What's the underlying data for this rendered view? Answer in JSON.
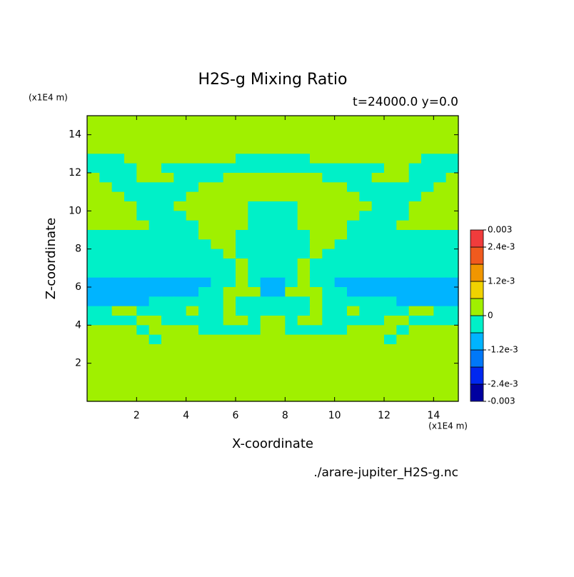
{
  "chart_data": {
    "type": "contour",
    "title": "H2S-g Mixing Ratio",
    "subtitle": "t=24000.0 y=0.0",
    "x_label": "X-coordinate",
    "y_label": "Z-coordinate",
    "x_unit": "(x1E4 m)",
    "y_unit": "(x1E4 m)",
    "source": "./arare-jupiter_H2S-g.nc",
    "xlim": [
      0,
      15
    ],
    "ylim": [
      0,
      15
    ],
    "xticks": [
      2,
      4,
      6,
      8,
      10,
      12,
      14
    ],
    "yticks": [
      2,
      4,
      6,
      8,
      10,
      12,
      14
    ],
    "levels": [
      -0.003,
      -0.0024,
      -0.0018,
      -0.0012,
      -0.0006,
      0,
      0.0006,
      0.0012,
      0.0018,
      0.0024,
      0.003
    ],
    "colors": [
      "#0000a0",
      "#0028f0",
      "#0078f8",
      "#00b4ff",
      "#00f0c8",
      "#a0f000",
      "#f0d200",
      "#f09600",
      "#f05a1e",
      "#f03c3c"
    ],
    "colorbar_ticks": [
      0.003,
      {
        "value": 0.0024,
        "label": "2.4e-3"
      },
      {
        "value": 0.0012,
        "label": "1.2e-3"
      },
      0,
      {
        "value": -0.0012,
        "label": "-1.2e-3"
      },
      {
        "value": -0.0024,
        "label": "-2.4e-3"
      },
      -0.003
    ],
    "z": [
      [
        0.0003,
        0.0003,
        0.0003,
        0.0003,
        0.0003,
        0.0003,
        0.0003,
        0.0003,
        0.0003,
        0.0003,
        0.0003,
        0.0003,
        0.0003,
        0.0003,
        0.0003,
        0.0003,
        0.0003,
        0.0003,
        0.0003,
        0.0003,
        0.0003,
        0.0003,
        0.0003,
        0.0003,
        0.0003,
        0.0003,
        0.0003,
        0.0003,
        0.0003,
        0.0003
      ],
      [
        0.0003,
        0.0003,
        0.0003,
        0.0003,
        0.0003,
        0.0003,
        0.0003,
        0.0003,
        0.0003,
        0.0003,
        0.0003,
        0.0003,
        0.0003,
        0.0003,
        0.0003,
        0.0003,
        0.0003,
        0.0003,
        0.0003,
        0.0003,
        0.0003,
        0.0003,
        0.0003,
        0.0003,
        0.0003,
        0.0003,
        0.0003,
        0.0003,
        0.0003,
        0.0003
      ],
      [
        0.0003,
        0.0003,
        0.0003,
        0.0003,
        0.0003,
        0.0003,
        0.0003,
        0.0003,
        0.0003,
        0.0003,
        0.0003,
        0.0003,
        0.0003,
        0.0003,
        0.0003,
        0.0003,
        0.0003,
        0.0003,
        0.0003,
        0.0003,
        0.0003,
        0.0003,
        0.0003,
        0.0003,
        0.0003,
        0.0003,
        0.0003,
        0.0003,
        0.0003,
        0.0003
      ],
      [
        0.0003,
        0.0003,
        0.0003,
        0.0003,
        0.0003,
        0.0003,
        0.0003,
        0.0003,
        0.0003,
        0.0003,
        0.0003,
        0.0003,
        0.0003,
        0.0003,
        0.0003,
        0.0003,
        0.0003,
        0.0003,
        0.0003,
        0.0003,
        0.0003,
        0.0003,
        0.0003,
        0.0003,
        0.0003,
        0.0003,
        0.0003,
        0.0003,
        0.0003,
        0.0003
      ],
      [
        -0.0003,
        -0.0003,
        -0.0003,
        0.0003,
        0.0003,
        0.0003,
        0.0003,
        0.0003,
        0.0003,
        0.0003,
        0.0003,
        0.0003,
        -0.0003,
        -0.0003,
        -0.0003,
        -0.0003,
        -0.0003,
        -0.0003,
        0.0003,
        0.0003,
        0.0003,
        0.0003,
        0.0003,
        0.0003,
        0.0003,
        0.0003,
        0.0003,
        -0.0003,
        -0.0003,
        -0.0003
      ],
      [
        -0.0003,
        -0.0003,
        -0.0003,
        -0.0003,
        0.0003,
        0.0003,
        -0.0003,
        -0.0003,
        -0.0003,
        -0.0003,
        -0.0003,
        -0.0003,
        -0.0003,
        -0.0003,
        -0.0003,
        -0.0003,
        -0.0003,
        -0.0003,
        -0.0003,
        -0.0003,
        -0.0003,
        -0.0003,
        -0.0003,
        -0.0003,
        0.0003,
        0.0003,
        -0.0003,
        -0.0003,
        -0.0003,
        -0.0003
      ],
      [
        0.0003,
        -0.0003,
        -0.0003,
        -0.0003,
        0.0003,
        0.0003,
        0.0003,
        -0.0003,
        -0.0003,
        -0.0003,
        -0.0003,
        0.0003,
        0.0003,
        0.0003,
        0.0003,
        0.0003,
        0.0003,
        0.0003,
        0.0003,
        -0.0003,
        -0.0003,
        -0.0003,
        -0.0003,
        0.0003,
        0.0003,
        0.0003,
        -0.0003,
        -0.0003,
        -0.0003,
        0.0003
      ],
      [
        0.0003,
        0.0003,
        -0.0003,
        -0.0003,
        -0.0003,
        -0.0003,
        -0.0003,
        -0.0003,
        -0.0003,
        0.0003,
        0.0003,
        0.0003,
        0.0003,
        0.0003,
        0.0003,
        0.0003,
        0.0003,
        0.0003,
        0.0003,
        0.0003,
        0.0003,
        -0.0003,
        -0.0003,
        -0.0003,
        -0.0003,
        -0.0003,
        -0.0003,
        -0.0003,
        0.0003,
        0.0003
      ],
      [
        0.0003,
        0.0003,
        0.0003,
        -0.0003,
        -0.0003,
        -0.0003,
        -0.0003,
        -0.0003,
        0.0003,
        0.0003,
        0.0003,
        0.0003,
        0.0003,
        0.0003,
        0.0003,
        0.0003,
        0.0003,
        0.0003,
        0.0003,
        0.0003,
        0.0003,
        0.0003,
        -0.0003,
        -0.0003,
        -0.0003,
        -0.0003,
        -0.0003,
        0.0003,
        0.0003,
        0.0003
      ],
      [
        0.0003,
        0.0003,
        0.0003,
        0.0003,
        -0.0003,
        -0.0003,
        -0.0003,
        0.0003,
        0.0003,
        0.0003,
        0.0003,
        0.0003,
        0.0003,
        -0.0003,
        -0.0003,
        -0.0003,
        -0.0003,
        0.0003,
        0.0003,
        0.0003,
        0.0003,
        0.0003,
        0.0003,
        -0.0003,
        -0.0003,
        -0.0003,
        0.0003,
        0.0003,
        0.0003,
        0.0003
      ],
      [
        0.0003,
        0.0003,
        0.0003,
        0.0003,
        -0.0003,
        -0.0003,
        -0.0003,
        -0.0003,
        0.0003,
        0.0003,
        0.0003,
        0.0003,
        0.0003,
        -0.0003,
        -0.0003,
        -0.0003,
        -0.0003,
        0.0003,
        0.0003,
        0.0003,
        0.0003,
        0.0003,
        -0.0003,
        -0.0003,
        -0.0003,
        -0.0003,
        0.0003,
        0.0003,
        0.0003,
        0.0003
      ],
      [
        0.0003,
        0.0003,
        0.0003,
        0.0003,
        0.0003,
        -0.0003,
        -0.0003,
        -0.0003,
        -0.0003,
        0.0003,
        0.0003,
        0.0003,
        0.0003,
        -0.0003,
        -0.0003,
        -0.0003,
        -0.0003,
        0.0003,
        0.0003,
        0.0003,
        0.0003,
        -0.0003,
        -0.0003,
        -0.0003,
        -0.0003,
        0.0003,
        0.0003,
        0.0003,
        0.0003,
        0.0003
      ],
      [
        -0.0003,
        -0.0003,
        -0.0003,
        -0.0003,
        -0.0003,
        -0.0003,
        -0.0003,
        -0.0003,
        -0.0003,
        0.0003,
        0.0003,
        0.0003,
        -0.0003,
        -0.0003,
        -0.0003,
        -0.0003,
        -0.0003,
        -0.0003,
        0.0003,
        0.0003,
        0.0003,
        -0.0003,
        -0.0003,
        -0.0003,
        -0.0003,
        -0.0003,
        -0.0003,
        -0.0003,
        -0.0003,
        -0.0003
      ],
      [
        -0.0003,
        -0.0003,
        -0.0003,
        -0.0003,
        -0.0003,
        -0.0003,
        -0.0003,
        -0.0003,
        -0.0003,
        -0.0003,
        0.0003,
        0.0003,
        -0.0003,
        -0.0003,
        -0.0003,
        -0.0003,
        -0.0003,
        -0.0003,
        0.0003,
        0.0003,
        -0.0003,
        -0.0003,
        -0.0003,
        -0.0003,
        -0.0003,
        -0.0003,
        -0.0003,
        -0.0003,
        -0.0003,
        -0.0003
      ],
      [
        -0.0003,
        -0.0003,
        -0.0003,
        -0.0003,
        -0.0003,
        -0.0003,
        -0.0003,
        -0.0003,
        -0.0003,
        -0.0003,
        -0.0003,
        0.0003,
        -0.0003,
        -0.0003,
        -0.0003,
        -0.0003,
        -0.0003,
        -0.0003,
        0.0003,
        -0.0003,
        -0.0003,
        -0.0003,
        -0.0003,
        -0.0003,
        -0.0003,
        -0.0003,
        -0.0003,
        -0.0003,
        -0.0003,
        -0.0003
      ],
      [
        -0.0003,
        -0.0003,
        -0.0003,
        -0.0003,
        -0.0003,
        -0.0003,
        -0.0003,
        -0.0003,
        -0.0003,
        -0.0003,
        -0.0003,
        -0.0003,
        0.0003,
        -0.0003,
        -0.0003,
        -0.0003,
        -0.0003,
        0.0003,
        -0.0003,
        -0.0003,
        -0.0003,
        -0.0003,
        -0.0003,
        -0.0003,
        -0.0003,
        -0.0003,
        -0.0003,
        -0.0003,
        -0.0003,
        -0.0003
      ],
      [
        -0.0003,
        -0.0003,
        -0.0003,
        -0.0003,
        -0.0003,
        -0.0003,
        -0.0003,
        -0.0003,
        -0.0003,
        -0.0003,
        -0.0003,
        -0.0003,
        0.0003,
        -0.0003,
        -0.0003,
        -0.0003,
        -0.0003,
        0.0003,
        -0.0003,
        -0.0003,
        -0.0003,
        -0.0003,
        -0.0003,
        -0.0003,
        -0.0003,
        -0.0003,
        -0.0003,
        -0.0003,
        -0.0003,
        -0.0003
      ],
      [
        -0.0009,
        -0.0009,
        -0.0009,
        -0.0009,
        -0.0009,
        -0.0009,
        -0.0009,
        -0.0009,
        -0.0009,
        -0.0009,
        -0.0003,
        -0.0003,
        0.0003,
        -0.0003,
        -0.0009,
        -0.0009,
        -0.0003,
        0.0003,
        -0.0003,
        -0.0003,
        -0.0009,
        -0.0009,
        -0.0009,
        -0.0009,
        -0.0009,
        -0.0009,
        -0.0009,
        -0.0009,
        -0.0009,
        -0.0009
      ],
      [
        -0.0009,
        -0.0009,
        -0.0009,
        -0.0009,
        -0.0009,
        -0.0009,
        -0.0009,
        -0.0009,
        -0.0009,
        -0.0003,
        -0.0003,
        0.0003,
        0.0003,
        0.0003,
        -0.0009,
        -0.0009,
        0.0003,
        0.0003,
        0.0003,
        -0.0003,
        -0.0003,
        -0.0009,
        -0.0009,
        -0.0009,
        -0.0009,
        -0.0009,
        -0.0009,
        -0.0009,
        -0.0009,
        -0.0009
      ],
      [
        -0.0009,
        -0.0009,
        -0.0009,
        -0.0009,
        -0.0009,
        -0.0003,
        -0.0003,
        -0.0003,
        -0.0003,
        -0.0003,
        -0.0003,
        0.0003,
        -0.0003,
        -0.0003,
        -0.0003,
        -0.0003,
        -0.0003,
        -0.0003,
        0.0003,
        -0.0003,
        -0.0003,
        -0.0003,
        -0.0003,
        -0.0003,
        -0.0003,
        -0.0009,
        -0.0009,
        -0.0009,
        -0.0009,
        -0.0009
      ],
      [
        -0.0003,
        -0.0003,
        0.0003,
        0.0003,
        -0.0003,
        -0.0003,
        -0.0003,
        -0.0003,
        0.0003,
        -0.0003,
        -0.0003,
        0.0003,
        -0.0003,
        -0.0003,
        -0.0003,
        -0.0003,
        -0.0003,
        -0.0003,
        0.0003,
        -0.0003,
        -0.0003,
        0.0003,
        -0.0003,
        -0.0003,
        -0.0003,
        -0.0003,
        0.0003,
        0.0003,
        -0.0003,
        -0.0003
      ],
      [
        -0.0003,
        -0.0003,
        -0.0003,
        -0.0003,
        0.0003,
        0.0003,
        -0.0003,
        -0.0003,
        -0.0003,
        -0.0003,
        -0.0003,
        0.0003,
        0.0003,
        -0.0003,
        0.0003,
        0.0003,
        -0.0003,
        0.0003,
        0.0003,
        -0.0003,
        -0.0003,
        -0.0003,
        -0.0003,
        -0.0003,
        0.0003,
        0.0003,
        -0.0003,
        -0.0003,
        -0.0003,
        -0.0003
      ],
      [
        0.0003,
        0.0003,
        0.0003,
        0.0003,
        -0.0003,
        0.0003,
        0.0003,
        0.0003,
        0.0003,
        -0.0003,
        -0.0003,
        -0.0003,
        -0.0003,
        -0.0003,
        0.0003,
        0.0003,
        -0.0003,
        -0.0003,
        -0.0003,
        -0.0003,
        -0.0003,
        0.0003,
        0.0003,
        0.0003,
        0.0003,
        -0.0003,
        0.0003,
        0.0003,
        0.0003,
        0.0003
      ],
      [
        0.0003,
        0.0003,
        0.0003,
        0.0003,
        0.0003,
        -0.0003,
        0.0003,
        0.0003,
        0.0003,
        0.0003,
        0.0003,
        0.0003,
        0.0003,
        0.0003,
        0.0003,
        0.0003,
        0.0003,
        0.0003,
        0.0003,
        0.0003,
        0.0003,
        0.0003,
        0.0003,
        0.0003,
        -0.0003,
        0.0003,
        0.0003,
        0.0003,
        0.0003,
        0.0003
      ],
      [
        0.0003,
        0.0003,
        0.0003,
        0.0003,
        0.0003,
        0.0003,
        0.0003,
        0.0003,
        0.0003,
        0.0003,
        0.0003,
        0.0003,
        0.0003,
        0.0003,
        0.0003,
        0.0003,
        0.0003,
        0.0003,
        0.0003,
        0.0003,
        0.0003,
        0.0003,
        0.0003,
        0.0003,
        0.0003,
        0.0003,
        0.0003,
        0.0003,
        0.0003,
        0.0003
      ],
      [
        0.0003,
        0.0003,
        0.0003,
        0.0003,
        0.0003,
        0.0003,
        0.0003,
        0.0003,
        0.0003,
        0.0003,
        0.0003,
        0.0003,
        0.0003,
        0.0003,
        0.0003,
        0.0003,
        0.0003,
        0.0003,
        0.0003,
        0.0003,
        0.0003,
        0.0003,
        0.0003,
        0.0003,
        0.0003,
        0.0003,
        0.0003,
        0.0003,
        0.0003,
        0.0003
      ],
      [
        0.0003,
        0.0003,
        0.0003,
        0.0003,
        0.0003,
        0.0003,
        0.0003,
        0.0003,
        0.0003,
        0.0003,
        0.0003,
        0.0003,
        0.0003,
        0.0003,
        0.0003,
        0.0003,
        0.0003,
        0.0003,
        0.0003,
        0.0003,
        0.0003,
        0.0003,
        0.0003,
        0.0003,
        0.0003,
        0.0003,
        0.0003,
        0.0003,
        0.0003,
        0.0003
      ],
      [
        0.0003,
        0.0003,
        0.0003,
        0.0003,
        0.0003,
        0.0003,
        0.0003,
        0.0003,
        0.0003,
        0.0003,
        0.0003,
        0.0003,
        0.0003,
        0.0003,
        0.0003,
        0.0003,
        0.0003,
        0.0003,
        0.0003,
        0.0003,
        0.0003,
        0.0003,
        0.0003,
        0.0003,
        0.0003,
        0.0003,
        0.0003,
        0.0003,
        0.0003,
        0.0003
      ],
      [
        0.0003,
        0.0003,
        0.0003,
        0.0003,
        0.0003,
        0.0003,
        0.0003,
        0.0003,
        0.0003,
        0.0003,
        0.0003,
        0.0003,
        0.0003,
        0.0003,
        0.0003,
        0.0003,
        0.0003,
        0.0003,
        0.0003,
        0.0003,
        0.0003,
        0.0003,
        0.0003,
        0.0003,
        0.0003,
        0.0003,
        0.0003,
        0.0003,
        0.0003,
        0.0003
      ],
      [
        0.0003,
        0.0003,
        0.0003,
        0.0003,
        0.0003,
        0.0003,
        0.0003,
        0.0003,
        0.0003,
        0.0003,
        0.0003,
        0.0003,
        0.0003,
        0.0003,
        0.0003,
        0.0003,
        0.0003,
        0.0003,
        0.0003,
        0.0003,
        0.0003,
        0.0003,
        0.0003,
        0.0003,
        0.0003,
        0.0003,
        0.0003,
        0.0003,
        0.0003,
        0.0003
      ]
    ]
  }
}
